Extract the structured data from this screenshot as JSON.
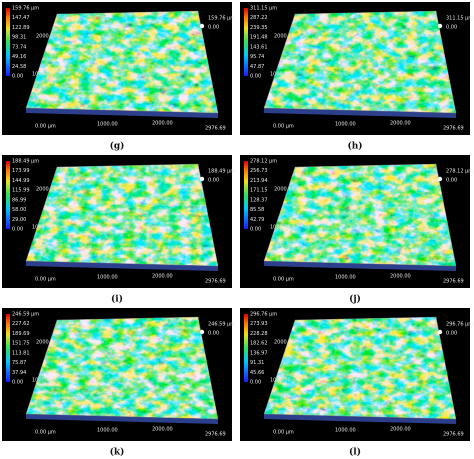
{
  "axis": {
    "x": [
      "0.00 µm",
      "1000.00",
      "2000.00",
      "2976.69"
    ],
    "y": [
      "2000.00",
      "1000.00"
    ]
  },
  "panels": [
    {
      "caption": "(g)",
      "zmax": "159.76 µm",
      "zmin": "0.00",
      "colorbar": [
        "159.76 µm",
        "147.47",
        "122.89",
        "98.31",
        "73.74",
        "49.16",
        "24.58",
        "0.00"
      ]
    },
    {
      "caption": "(h)",
      "zmax": "311.15 µm",
      "zmin": "0.00",
      "colorbar": [
        "311.15 µm",
        "287.22",
        "239.35",
        "191.48",
        "143.61",
        "95.74",
        "47.87",
        "0.00"
      ]
    },
    {
      "caption": "(i)",
      "zmax": "188.49 µm",
      "zmin": "0.00",
      "colorbar": [
        "188.49 µm",
        "173.99",
        "144.99",
        "115.99",
        "86.99",
        "58.00",
        "29.00",
        "0.00"
      ]
    },
    {
      "caption": "(j)",
      "zmax": "278.12 µm",
      "zmin": "0.00",
      "colorbar": [
        "278.12 µm",
        "256.73",
        "213.94",
        "171.15",
        "128.37",
        "85.58",
        "42.79",
        "0.00"
      ]
    },
    {
      "caption": "(k)",
      "zmax": "246.59 µm",
      "zmin": "0.00",
      "colorbar": [
        "246.59 µm",
        "227.62",
        "189.69",
        "151.75",
        "113.81",
        "75.87",
        "37.94",
        "0.00"
      ]
    },
    {
      "caption": "(l)",
      "zmax": "296.76 µm",
      "zmin": "0.00",
      "colorbar": [
        "296.76 µm",
        "273.93",
        "228.28",
        "182.62",
        "136.97",
        "91.31",
        "45.66",
        "0.00"
      ]
    }
  ]
}
